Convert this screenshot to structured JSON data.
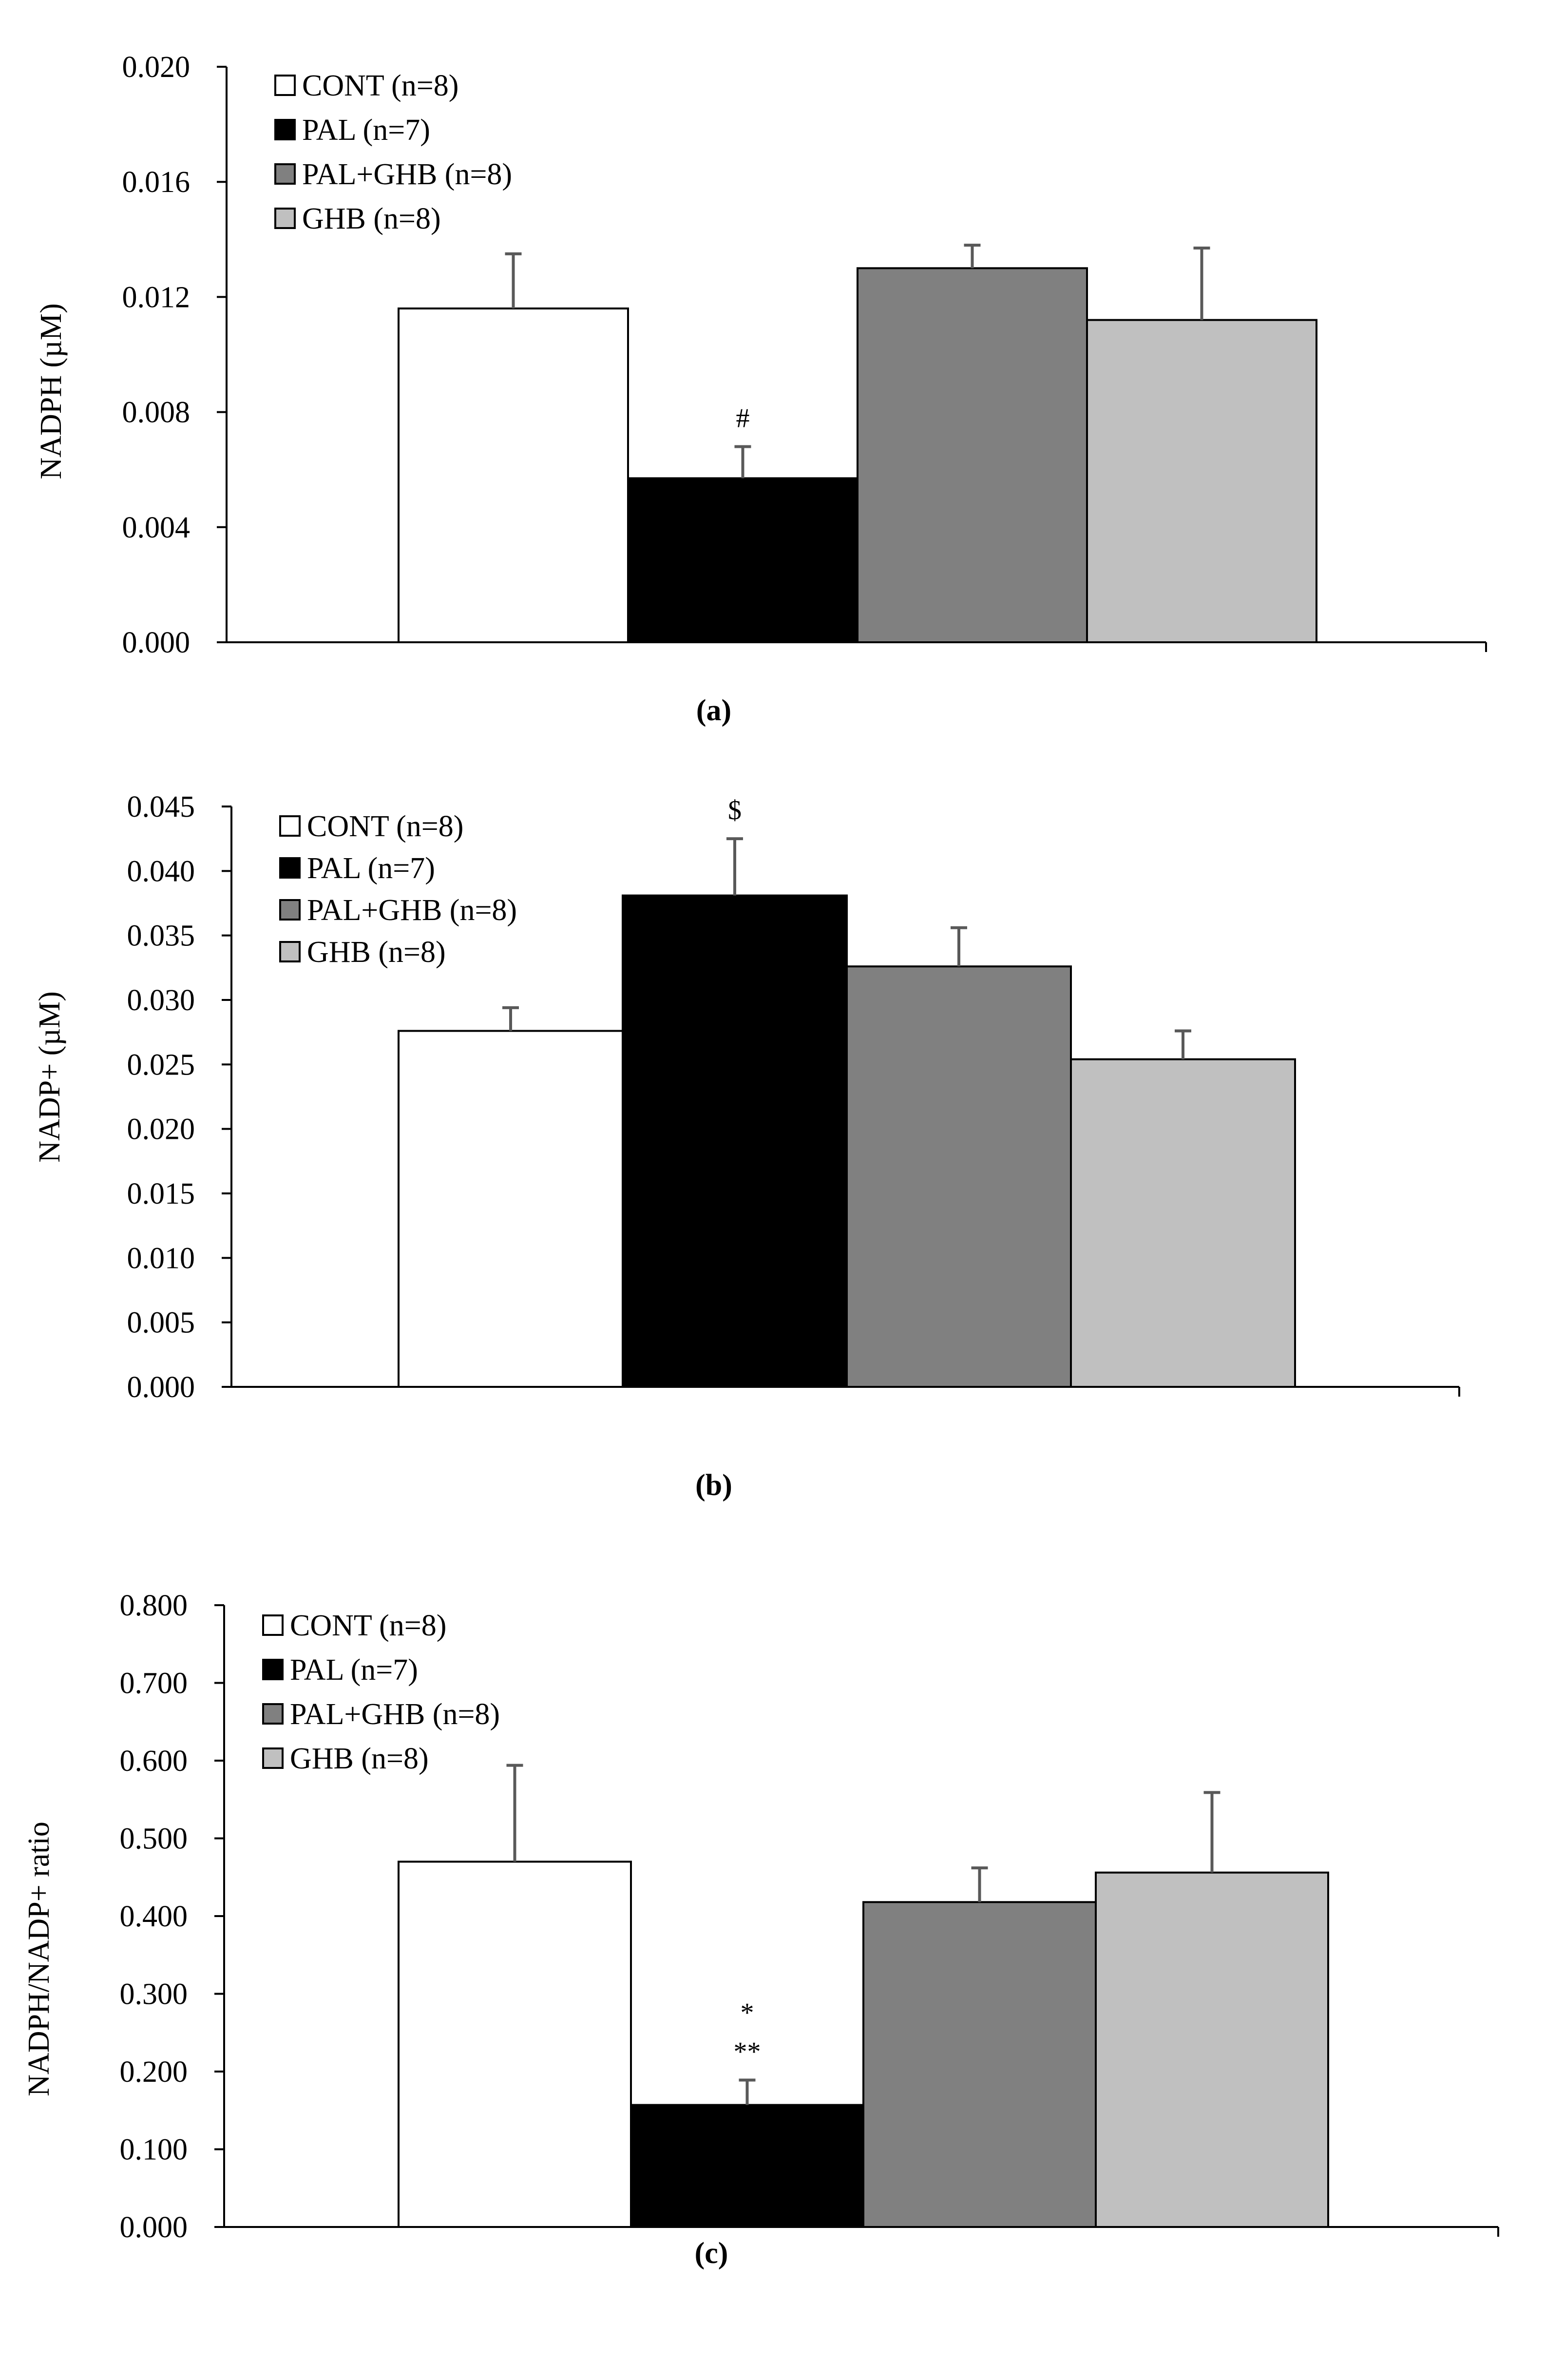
{
  "legend_labels": [
    "CONT (n=8)",
    "PAL (n=7)",
    "PAL+GHB (n=8)",
    "GHB (n=8)"
  ],
  "colors": {
    "cont": "#ffffff",
    "pal": "#000000",
    "pal_ghb": "#808080",
    "ghb": "#c0c0c0",
    "axis": "#000000",
    "error_bar": "#595959"
  },
  "chart_data": [
    {
      "type": "bar",
      "panel_label": "(a)",
      "title": "",
      "xlabel": "",
      "ylabel": "NADPH (µM)",
      "ylim": [
        0,
        0.02
      ],
      "yticks": [
        "0.000",
        "0.004",
        "0.008",
        "0.012",
        "0.016",
        "0.020"
      ],
      "grid": false,
      "legend_position": "top-left",
      "categories": [
        "CONT (n=8)",
        "PAL (n=7)",
        "PAL+GHB (n=8)",
        "GHB (n=8)"
      ],
      "values": [
        0.0116,
        0.0057,
        0.013,
        0.0112
      ],
      "errors": [
        0.0019,
        0.0011,
        0.0008,
        0.0025
      ],
      "annotations": [
        {
          "category": "PAL (n=7)",
          "lines": [
            "#"
          ]
        }
      ]
    },
    {
      "type": "bar",
      "panel_label": "(b)",
      "title": "",
      "xlabel": "",
      "ylabel": "NADP+ (µM)",
      "ylim": [
        0,
        0.045
      ],
      "yticks": [
        "0.000",
        "0.005",
        "0.010",
        "0.015",
        "0.020",
        "0.025",
        "0.030",
        "0.035",
        "0.040",
        "0.045"
      ],
      "grid": false,
      "legend_position": "top-left",
      "categories": [
        "CONT (n=8)",
        "PAL (n=7)",
        "PAL+GHB (n=8)",
        "GHB (n=8)"
      ],
      "values": [
        0.0276,
        0.0381,
        0.0326,
        0.0254
      ],
      "errors": [
        0.0018,
        0.0044,
        0.003,
        0.0022
      ],
      "annotations": [
        {
          "category": "PAL (n=7)",
          "lines": [
            "$"
          ]
        }
      ]
    },
    {
      "type": "bar",
      "panel_label": "(c)",
      "title": "",
      "xlabel": "",
      "ylabel": "NADPH/NADP+ ratio",
      "ylim": [
        0,
        0.8
      ],
      "yticks": [
        "0.000",
        "0.100",
        "0.200",
        "0.300",
        "0.400",
        "0.500",
        "0.600",
        "0.700",
        "0.800"
      ],
      "grid": false,
      "legend_position": "top-left",
      "categories": [
        "CONT (n=8)",
        "PAL (n=7)",
        "PAL+GHB (n=8)",
        "GHB (n=8)"
      ],
      "values": [
        0.47,
        0.157,
        0.418,
        0.456
      ],
      "errors": [
        0.124,
        0.032,
        0.044,
        0.103
      ],
      "annotations": [
        {
          "category": "PAL (n=7)",
          "lines": [
            "*",
            "**"
          ]
        }
      ]
    }
  ]
}
